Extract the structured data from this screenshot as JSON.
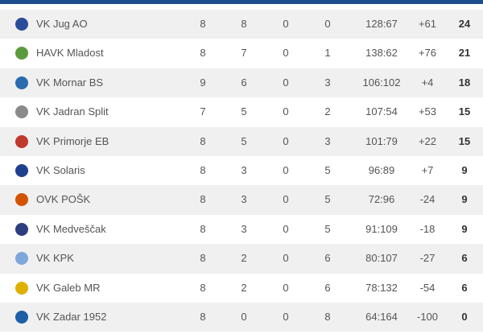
{
  "table": {
    "rows": [
      [
        "VK Jug AO",
        "8",
        "8",
        "0",
        "0",
        "128:67",
        "+61",
        "24"
      ],
      [
        "HAVK Mladost",
        "8",
        "7",
        "0",
        "1",
        "138:62",
        "+76",
        "21"
      ],
      [
        "VK Mornar BS",
        "9",
        "6",
        "0",
        "3",
        "106:102",
        "+4",
        "18"
      ],
      [
        "VK Jadran Split",
        "7",
        "5",
        "0",
        "2",
        "107:54",
        "+53",
        "15"
      ],
      [
        "VK Primorje EB",
        "8",
        "5",
        "0",
        "3",
        "101:79",
        "+22",
        "15"
      ],
      [
        "VK Solaris",
        "8",
        "3",
        "0",
        "5",
        "96:89",
        "+7",
        "9"
      ],
      [
        "OVK POŠK",
        "8",
        "3",
        "0",
        "5",
        "72:96",
        "-24",
        "9"
      ],
      [
        "VK Medveščak",
        "8",
        "3",
        "0",
        "5",
        "91:109",
        "-18",
        "9"
      ],
      [
        "VK KPK",
        "8",
        "2",
        "0",
        "6",
        "80:107",
        "-27",
        "6"
      ],
      [
        "VK Galeb MR",
        "8",
        "2",
        "0",
        "6",
        "78:132",
        "-54",
        "6"
      ],
      [
        "VK Zadar 1952",
        "8",
        "0",
        "0",
        "8",
        "64:164",
        "-100",
        "0"
      ]
    ]
  }
}
